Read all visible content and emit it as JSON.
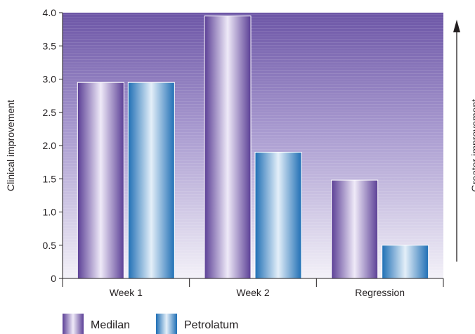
{
  "chart_data": {
    "type": "bar",
    "categories": [
      "Week 1",
      "Week 2",
      "Regression"
    ],
    "series": [
      {
        "name": "Medilan",
        "values": [
          2.95,
          3.95,
          1.48
        ],
        "color": "#7b5fae"
      },
      {
        "name": "Petrolatum",
        "values": [
          2.95,
          1.9,
          0.5
        ],
        "color": "#2f7fc1"
      }
    ],
    "ylabel": "Clinical improvement",
    "yticks": [
      "0",
      "0.5",
      "1.0",
      "1.5",
      "2.0",
      "2.5",
      "3.0",
      "3.5",
      "4.0"
    ],
    "ylim": [
      0,
      4.0
    ],
    "annotation": "Greater improvement",
    "background_gradient": [
      "#6c55a6",
      "#f3f1f8"
    ],
    "legend_position": "bottom-left"
  }
}
